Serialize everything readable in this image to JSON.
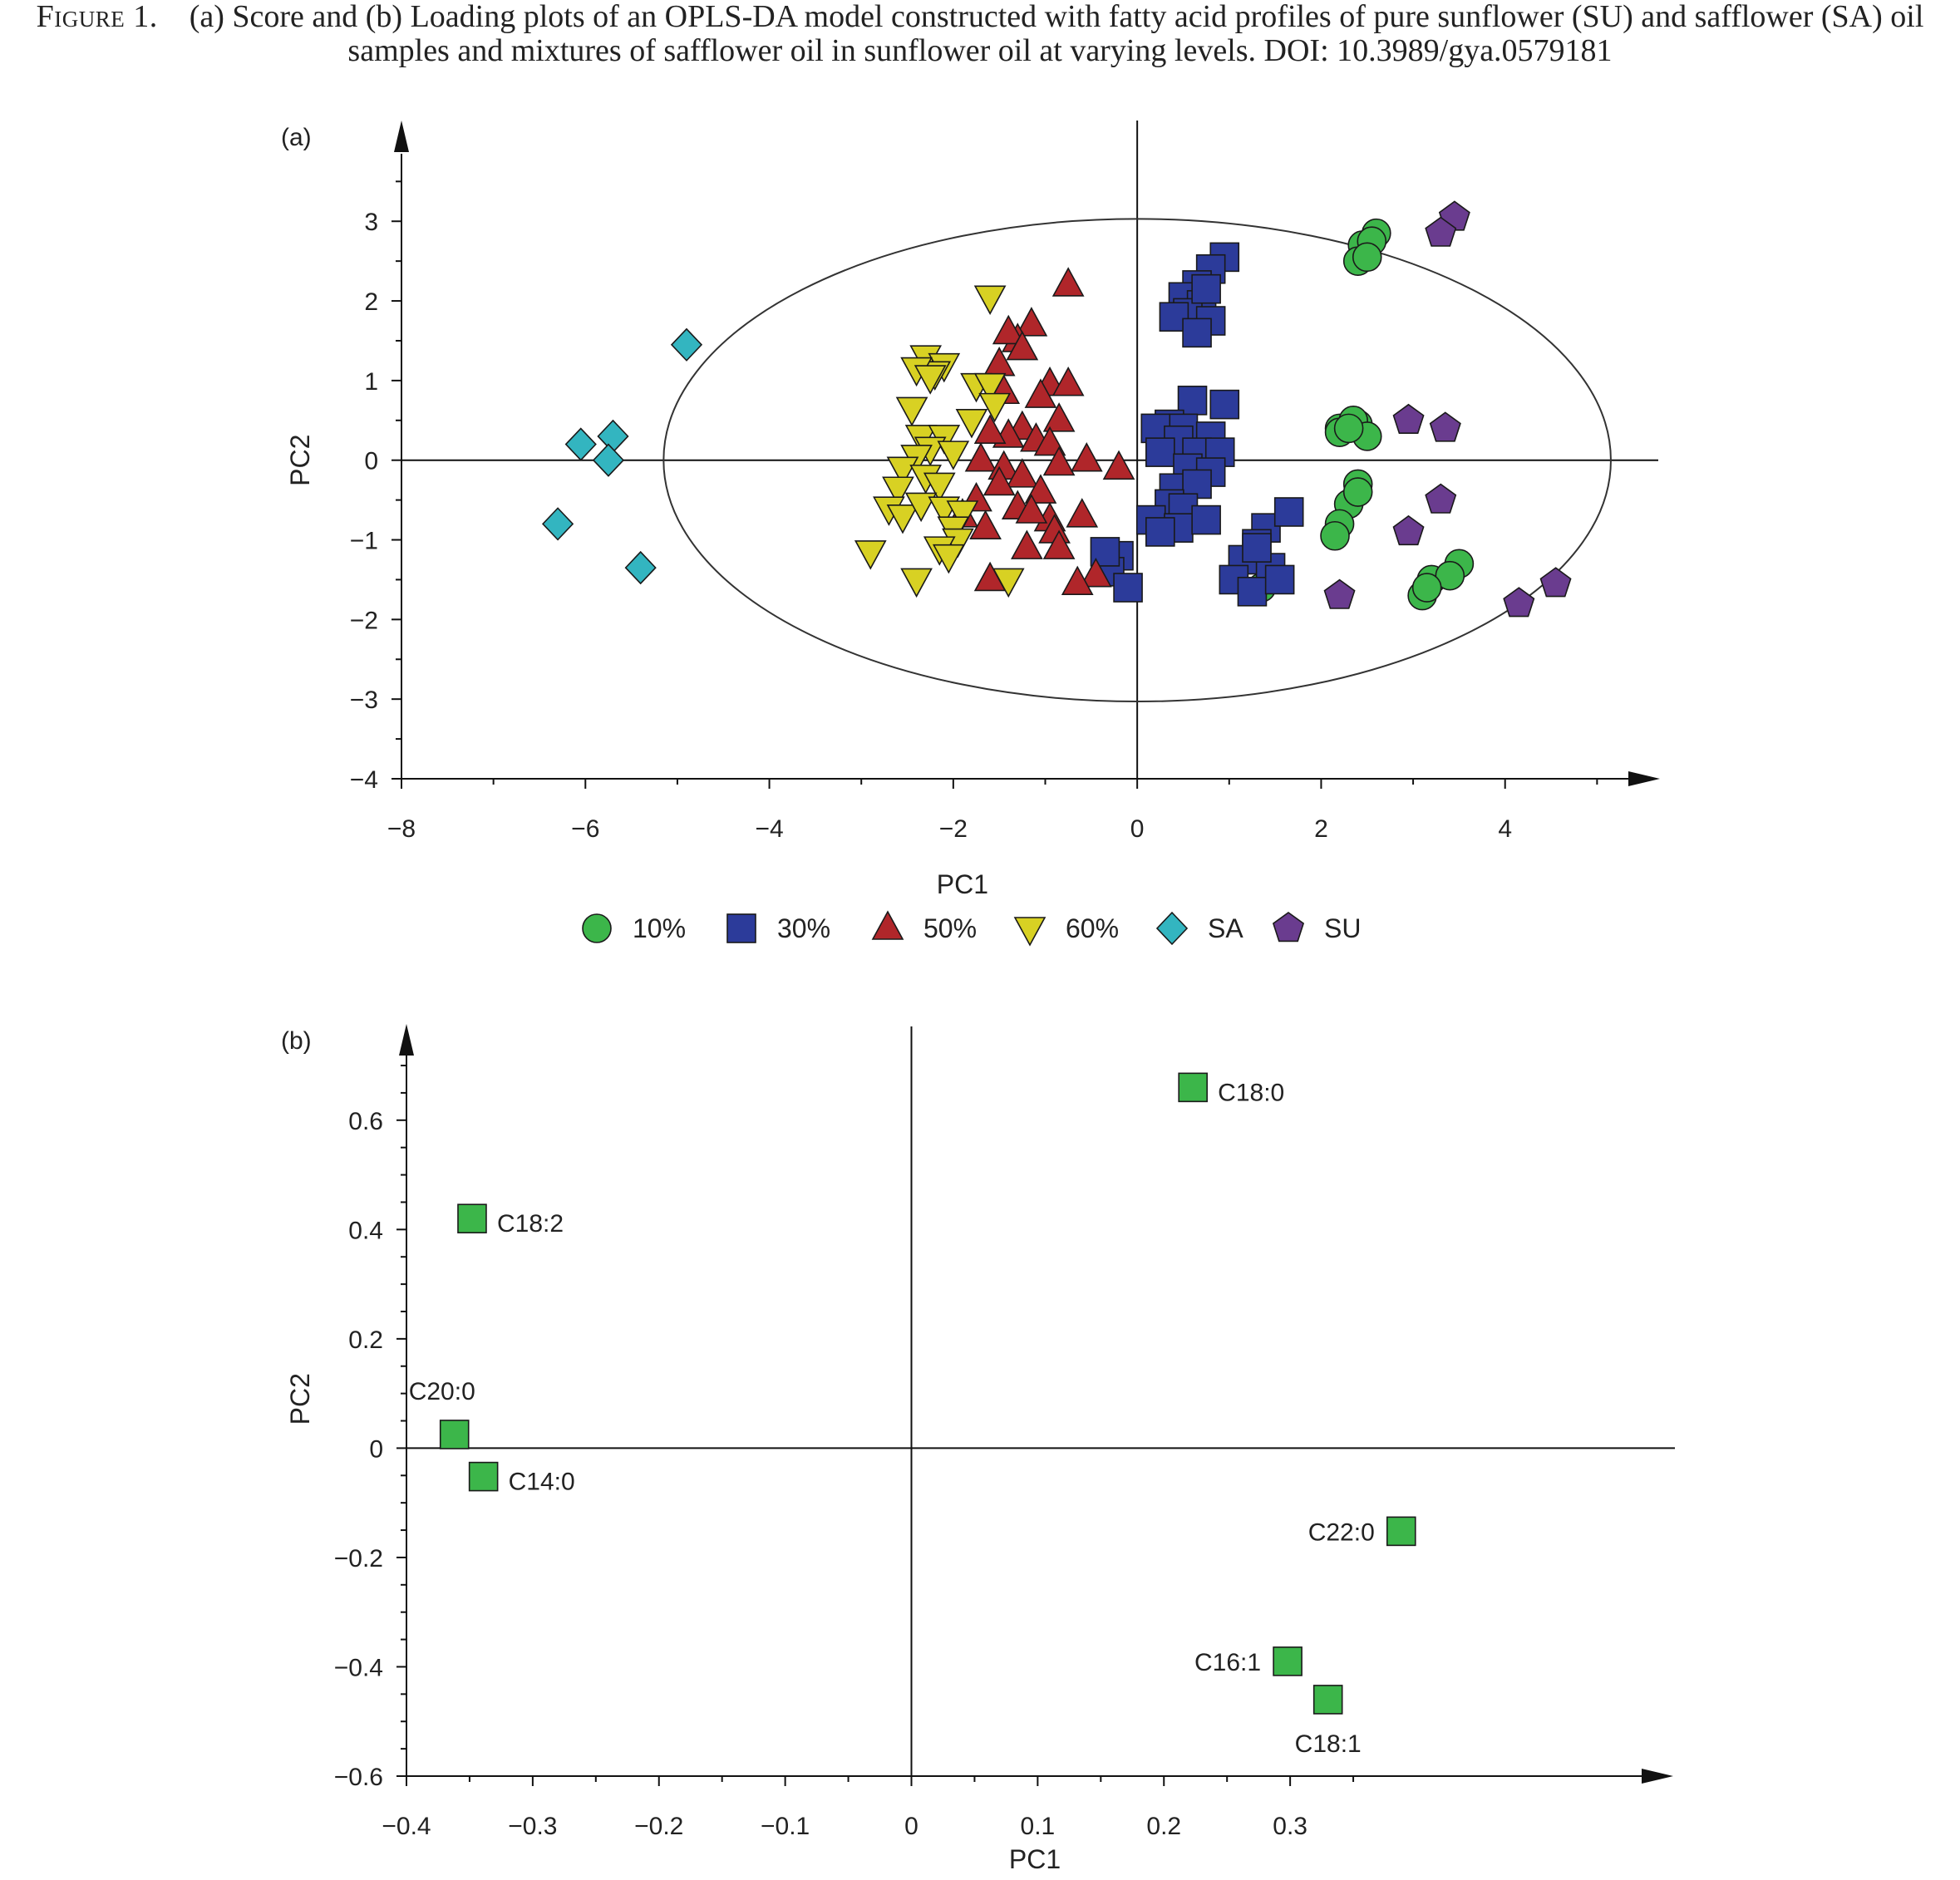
{
  "caption": {
    "figure_label": "Figure 1.",
    "text": "(a) Score and (b) Loading plots of an OPLS-DA model constructed with fatty acid profiles of pure sunflower (SU) and safflower (SA) oil samples and mixtures of safflower oil in sunflower oil at varying levels. DOI: 10.3989/gya.0579181"
  },
  "chart_data": [
    {
      "panel": "(a)",
      "type": "scatter",
      "xlabel": "PC1",
      "ylabel": "PC2",
      "xlim": [
        -8,
        6
      ],
      "ylim": [
        -4,
        3.9
      ],
      "xticks": [
        -8,
        -6,
        -4,
        -2,
        0,
        2,
        4
      ],
      "xtick_labels": [
        "−8",
        "−6",
        "−4",
        "−2",
        "0",
        "2",
        "4"
      ],
      "yticks": [
        -4,
        -3,
        -2,
        -1,
        0,
        1,
        2,
        3
      ],
      "ytick_labels": [
        "−4",
        "−3",
        "−2",
        "−1",
        "0",
        "1",
        "2",
        "3"
      ],
      "grid": false,
      "legend_position": "bottom",
      "confidence_ellipse": {
        "center": [
          0,
          0
        ],
        "semi_axis_x": 5.15,
        "semi_axis_y": 3.03
      },
      "series": [
        {
          "name": "10%",
          "marker": "circle",
          "color": "#3cb64a",
          "points": [
            [
              2.45,
              2.7
            ],
            [
              2.6,
              2.85
            ],
            [
              2.4,
              2.5
            ],
            [
              2.55,
              2.75
            ],
            [
              2.5,
              2.55
            ],
            [
              2.2,
              0.4
            ],
            [
              2.4,
              0.45
            ],
            [
              2.2,
              0.35
            ],
            [
              2.35,
              0.5
            ],
            [
              2.5,
              0.3
            ],
            [
              2.3,
              0.4
            ],
            [
              2.4,
              -0.3
            ],
            [
              2.3,
              -0.55
            ],
            [
              2.2,
              -0.8
            ],
            [
              2.15,
              -0.95
            ],
            [
              2.4,
              -0.4
            ],
            [
              3.2,
              -1.5
            ],
            [
              3.1,
              -1.7
            ],
            [
              3.5,
              -1.3
            ],
            [
              3.4,
              -1.45
            ],
            [
              3.15,
              -1.6
            ],
            [
              1.45,
              -1.45
            ],
            [
              1.35,
              -1.6
            ]
          ]
        },
        {
          "name": "30%",
          "marker": "square",
          "color": "#2c3b9a",
          "points": [
            [
              0.95,
              2.55
            ],
            [
              0.8,
              2.4
            ],
            [
              0.65,
              2.2
            ],
            [
              0.5,
              2.05
            ],
            [
              0.7,
              1.95
            ],
            [
              0.55,
              1.85
            ],
            [
              0.4,
              1.8
            ],
            [
              0.8,
              1.75
            ],
            [
              0.65,
              1.6
            ],
            [
              0.75,
              2.15
            ],
            [
              0.6,
              0.75
            ],
            [
              0.95,
              0.7
            ],
            [
              0.35,
              0.45
            ],
            [
              0.5,
              0.4
            ],
            [
              0.2,
              0.4
            ],
            [
              0.8,
              0.3
            ],
            [
              0.45,
              0.25
            ],
            [
              0.65,
              0.1
            ],
            [
              0.9,
              0.1
            ],
            [
              0.25,
              0.1
            ],
            [
              0.55,
              -0.1
            ],
            [
              0.8,
              -0.15
            ],
            [
              0.4,
              -0.35
            ],
            [
              0.65,
              -0.3
            ],
            [
              0.35,
              -0.55
            ],
            [
              0.5,
              -0.6
            ],
            [
              0.15,
              -0.75
            ],
            [
              0.45,
              -0.85
            ],
            [
              0.75,
              -0.75
            ],
            [
              0.25,
              -0.9
            ],
            [
              1.4,
              -0.85
            ],
            [
              1.65,
              -0.65
            ],
            [
              1.3,
              -1.05
            ],
            [
              1.15,
              -1.25
            ],
            [
              1.45,
              -1.35
            ],
            [
              1.05,
              -1.5
            ],
            [
              1.25,
              -1.65
            ],
            [
              1.55,
              -1.5
            ],
            [
              1.3,
              -1.1
            ],
            [
              -0.2,
              -1.2
            ],
            [
              -0.3,
              -1.4
            ],
            [
              -0.35,
              -1.15
            ],
            [
              -0.1,
              -1.6
            ]
          ]
        },
        {
          "name": "50%",
          "marker": "triangle-up",
          "color": "#b0262a",
          "points": [
            [
              -0.75,
              2.2
            ],
            [
              -1.15,
              1.7
            ],
            [
              -1.3,
              1.5
            ],
            [
              -1.4,
              1.6
            ],
            [
              -1.25,
              1.4
            ],
            [
              -1.5,
              1.2
            ],
            [
              -0.95,
              0.95
            ],
            [
              -0.75,
              0.95
            ],
            [
              -1.05,
              0.8
            ],
            [
              -1.45,
              0.85
            ],
            [
              -0.85,
              0.5
            ],
            [
              -1.25,
              0.4
            ],
            [
              -1.4,
              0.3
            ],
            [
              -1.1,
              0.25
            ],
            [
              -0.95,
              0.2
            ],
            [
              -1.6,
              0.35
            ],
            [
              -1.7,
              0.0
            ],
            [
              -1.45,
              -0.1
            ],
            [
              -1.25,
              -0.2
            ],
            [
              -1.5,
              -0.3
            ],
            [
              -1.05,
              -0.4
            ],
            [
              -0.85,
              -0.05
            ],
            [
              -0.55,
              0.0
            ],
            [
              -0.2,
              -0.1
            ],
            [
              -1.75,
              -0.5
            ],
            [
              -1.9,
              -0.7
            ],
            [
              -1.65,
              -0.85
            ],
            [
              -0.95,
              -0.75
            ],
            [
              -0.6,
              -0.7
            ],
            [
              -0.9,
              -0.9
            ],
            [
              -1.2,
              -1.1
            ],
            [
              -0.85,
              -1.1
            ],
            [
              -0.45,
              -1.45
            ],
            [
              -1.6,
              -1.5
            ],
            [
              -0.65,
              -1.55
            ],
            [
              -1.3,
              -0.6
            ],
            [
              -1.15,
              -0.65
            ]
          ]
        },
        {
          "name": "60%",
          "marker": "triangle-down",
          "color": "#d8d123",
          "points": [
            [
              -1.6,
              2.05
            ],
            [
              -2.3,
              1.3
            ],
            [
              -2.1,
              1.2
            ],
            [
              -2.2,
              1.1
            ],
            [
              -2.4,
              1.15
            ],
            [
              -2.25,
              1.05
            ],
            [
              -1.75,
              0.95
            ],
            [
              -1.6,
              0.95
            ],
            [
              -2.45,
              0.65
            ],
            [
              -1.55,
              0.7
            ],
            [
              -1.8,
              0.5
            ],
            [
              -2.35,
              0.3
            ],
            [
              -2.1,
              0.3
            ],
            [
              -2.25,
              0.15
            ],
            [
              -2.0,
              0.1
            ],
            [
              -2.4,
              0.05
            ],
            [
              -2.55,
              -0.1
            ],
            [
              -2.3,
              -0.2
            ],
            [
              -2.6,
              -0.35
            ],
            [
              -2.15,
              -0.3
            ],
            [
              -2.7,
              -0.6
            ],
            [
              -2.55,
              -0.7
            ],
            [
              -2.35,
              -0.55
            ],
            [
              -2.1,
              -0.6
            ],
            [
              -1.9,
              -0.65
            ],
            [
              -2.0,
              -0.85
            ],
            [
              -1.95,
              -1.0
            ],
            [
              -2.15,
              -1.1
            ],
            [
              -2.9,
              -1.15
            ],
            [
              -2.4,
              -1.5
            ],
            [
              -1.4,
              -1.5
            ],
            [
              -2.05,
              -1.2
            ]
          ]
        },
        {
          "name": "SA",
          "marker": "diamond",
          "color": "#33b5c0",
          "points": [
            [
              -4.9,
              1.45
            ],
            [
              -6.05,
              0.2
            ],
            [
              -5.7,
              0.3
            ],
            [
              -5.75,
              0.0
            ],
            [
              -6.3,
              -0.8
            ],
            [
              -5.4,
              -1.35
            ]
          ]
        },
        {
          "name": "SU",
          "marker": "pentagon",
          "color": "#6a3c8f",
          "points": [
            [
              3.45,
              3.05
            ],
            [
              3.3,
              2.85
            ],
            [
              2.95,
              0.5
            ],
            [
              3.35,
              0.4
            ],
            [
              3.3,
              -0.5
            ],
            [
              2.95,
              -0.9
            ],
            [
              2.2,
              -1.7
            ],
            [
              4.55,
              -1.55
            ],
            [
              4.15,
              -1.8
            ]
          ]
        }
      ]
    },
    {
      "panel": "(b)",
      "type": "scatter",
      "xlabel": "PC1",
      "ylabel": "PC2",
      "xlim": [
        -0.4,
        0.4
      ],
      "ylim": [
        -0.6,
        0.77
      ],
      "xticks": [
        -0.4,
        -0.3,
        -0.2,
        -0.1,
        0,
        0.1,
        0.2,
        0.3
      ],
      "xtick_labels": [
        "−0.4",
        "−0.3",
        "−0.2",
        "−0.1",
        "0",
        "0.1",
        "0.2",
        "0.3"
      ],
      "yticks": [
        -0.6,
        -0.4,
        -0.2,
        0,
        0.2,
        0.4,
        0.6
      ],
      "ytick_labels": [
        "−0.6",
        "−0.4",
        "−0.2",
        "0",
        "0.2",
        "0.4",
        "0.6"
      ],
      "grid": false,
      "marker_color": "#3cb64a",
      "points": [
        {
          "label": "C18:0",
          "x": 0.223,
          "y": 0.66,
          "label_side": "right"
        },
        {
          "label": "C18:2",
          "x": -0.348,
          "y": 0.42,
          "label_side": "right"
        },
        {
          "label": "C20:0",
          "x": -0.362,
          "y": 0.025,
          "label_side": "above"
        },
        {
          "label": "C14:0",
          "x": -0.339,
          "y": -0.052,
          "label_side": "right"
        },
        {
          "label": "C22:0",
          "x": 0.388,
          "y": -0.152,
          "label_side": "left"
        },
        {
          "label": "C16:1",
          "x": 0.298,
          "y": -0.39,
          "label_side": "left"
        },
        {
          "label": "C18:1",
          "x": 0.33,
          "y": -0.46,
          "label_side": "below"
        }
      ]
    }
  ]
}
